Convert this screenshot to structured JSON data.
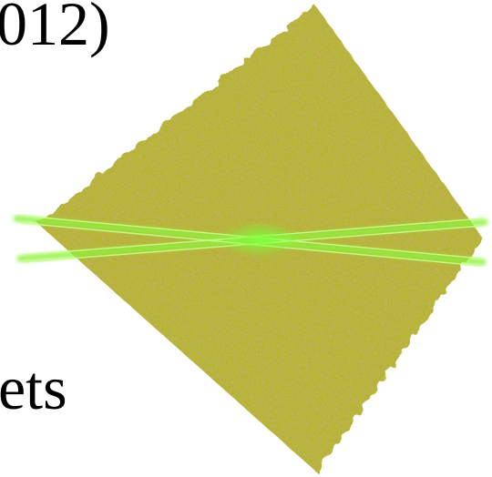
{
  "texts": {
    "top": "012)",
    "bottom": "ets"
  }
}
